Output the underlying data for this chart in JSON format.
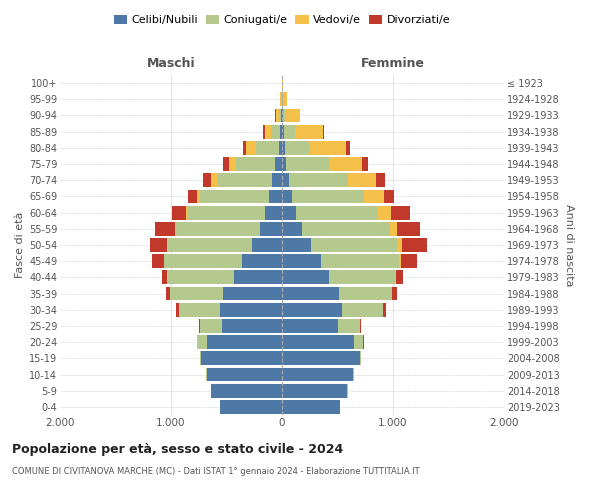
{
  "age_groups": [
    "0-4",
    "5-9",
    "10-14",
    "15-19",
    "20-24",
    "25-29",
    "30-34",
    "35-39",
    "40-44",
    "45-49",
    "50-54",
    "55-59",
    "60-64",
    "65-69",
    "70-74",
    "75-79",
    "80-84",
    "85-89",
    "90-94",
    "95-99",
    "100+"
  ],
  "birth_years": [
    "2019-2023",
    "2014-2018",
    "2009-2013",
    "2004-2008",
    "1999-2003",
    "1994-1998",
    "1989-1993",
    "1984-1988",
    "1979-1983",
    "1974-1978",
    "1969-1973",
    "1964-1968",
    "1959-1963",
    "1954-1958",
    "1949-1953",
    "1944-1948",
    "1939-1943",
    "1934-1938",
    "1929-1933",
    "1924-1928",
    "≤ 1923"
  ],
  "colors": {
    "celibi": "#4e79a7",
    "coniugati": "#b5c98e",
    "vedovi": "#f5c04a",
    "divorziati": "#c0392b"
  },
  "males": {
    "celibi": [
      560,
      640,
      680,
      730,
      680,
      540,
      560,
      530,
      430,
      360,
      270,
      200,
      150,
      120,
      90,
      60,
      30,
      15,
      6,
      3,
      2
    ],
    "coniugati": [
      2,
      3,
      5,
      10,
      80,
      200,
      370,
      480,
      600,
      700,
      760,
      760,
      700,
      620,
      500,
      350,
      200,
      80,
      20,
      5,
      0
    ],
    "vedovi": [
      0,
      0,
      0,
      1,
      2,
      1,
      1,
      1,
      2,
      3,
      5,
      8,
      15,
      30,
      50,
      70,
      90,
      60,
      30,
      10,
      2
    ],
    "divorziati": [
      0,
      0,
      0,
      2,
      5,
      10,
      20,
      35,
      50,
      110,
      150,
      180,
      130,
      75,
      70,
      50,
      30,
      15,
      5,
      2,
      0
    ]
  },
  "females": {
    "celibi": [
      520,
      590,
      640,
      700,
      650,
      500,
      540,
      510,
      420,
      350,
      260,
      180,
      130,
      90,
      65,
      40,
      25,
      15,
      8,
      3,
      2
    ],
    "coniugati": [
      2,
      3,
      5,
      10,
      80,
      200,
      370,
      480,
      600,
      700,
      780,
      790,
      730,
      650,
      530,
      380,
      220,
      100,
      20,
      5,
      0
    ],
    "vedovi": [
      0,
      0,
      0,
      1,
      2,
      2,
      3,
      5,
      10,
      20,
      40,
      70,
      120,
      180,
      250,
      300,
      330,
      250,
      130,
      35,
      5
    ],
    "divorziati": [
      0,
      0,
      0,
      2,
      5,
      10,
      20,
      40,
      60,
      150,
      230,
      200,
      170,
      90,
      80,
      55,
      40,
      15,
      5,
      2,
      0
    ]
  },
  "title": "Popolazione per età, sesso e stato civile - 2024",
  "subtitle": "COMUNE DI CIVITANOVA MARCHE (MC) - Dati ISTAT 1° gennaio 2024 - Elaborazione TUTTITALIA.IT",
  "xlabel_left": "Maschi",
  "xlabel_right": "Femmine",
  "ylabel_left": "Fasce di età",
  "ylabel_right": "Anni di nascita",
  "xlim": 2000,
  "background_color": "#ffffff",
  "legend_labels": [
    "Celibi/Nubili",
    "Coniugati/e",
    "Vedovi/e",
    "Divorziati/e"
  ]
}
